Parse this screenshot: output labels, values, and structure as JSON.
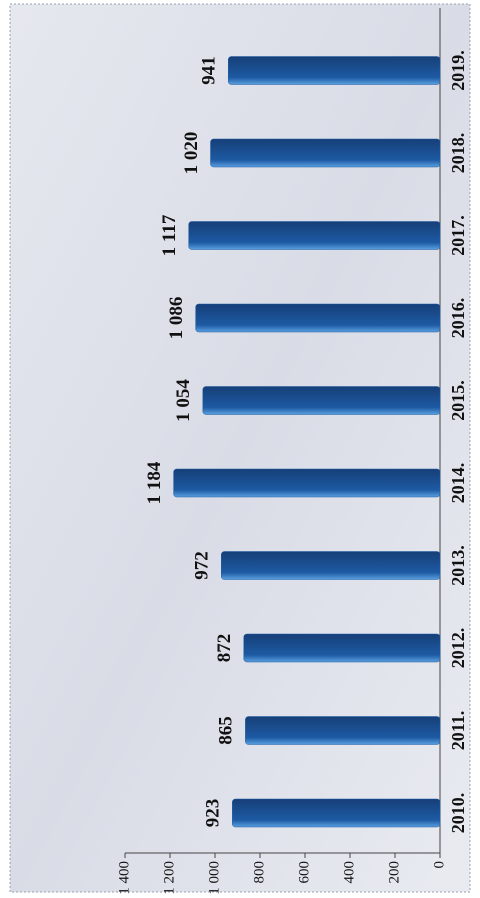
{
  "chart_data": {
    "type": "bar",
    "categories": [
      "2010.",
      "2011.",
      "2012.",
      "2013.",
      "2014.",
      "2015.",
      "2016.",
      "2017.",
      "2018.",
      "2019."
    ],
    "values": [
      923,
      865,
      872,
      972,
      1184,
      1054,
      1086,
      1117,
      1020,
      941
    ],
    "value_labels": [
      "923",
      "865",
      "872",
      "972",
      "1 184",
      "1 054",
      "1 086",
      "1 117",
      "1 020",
      "941"
    ],
    "color": "#1d5aa3",
    "ylim": [
      0,
      1400
    ],
    "yticks": [
      0,
      200,
      400,
      600,
      800,
      {
        "value": 1000,
        "label": "1 000"
      },
      {
        "value": 1200,
        "label": "1 200"
      },
      {
        "value": 1400,
        "label": "1 400"
      }
    ]
  }
}
